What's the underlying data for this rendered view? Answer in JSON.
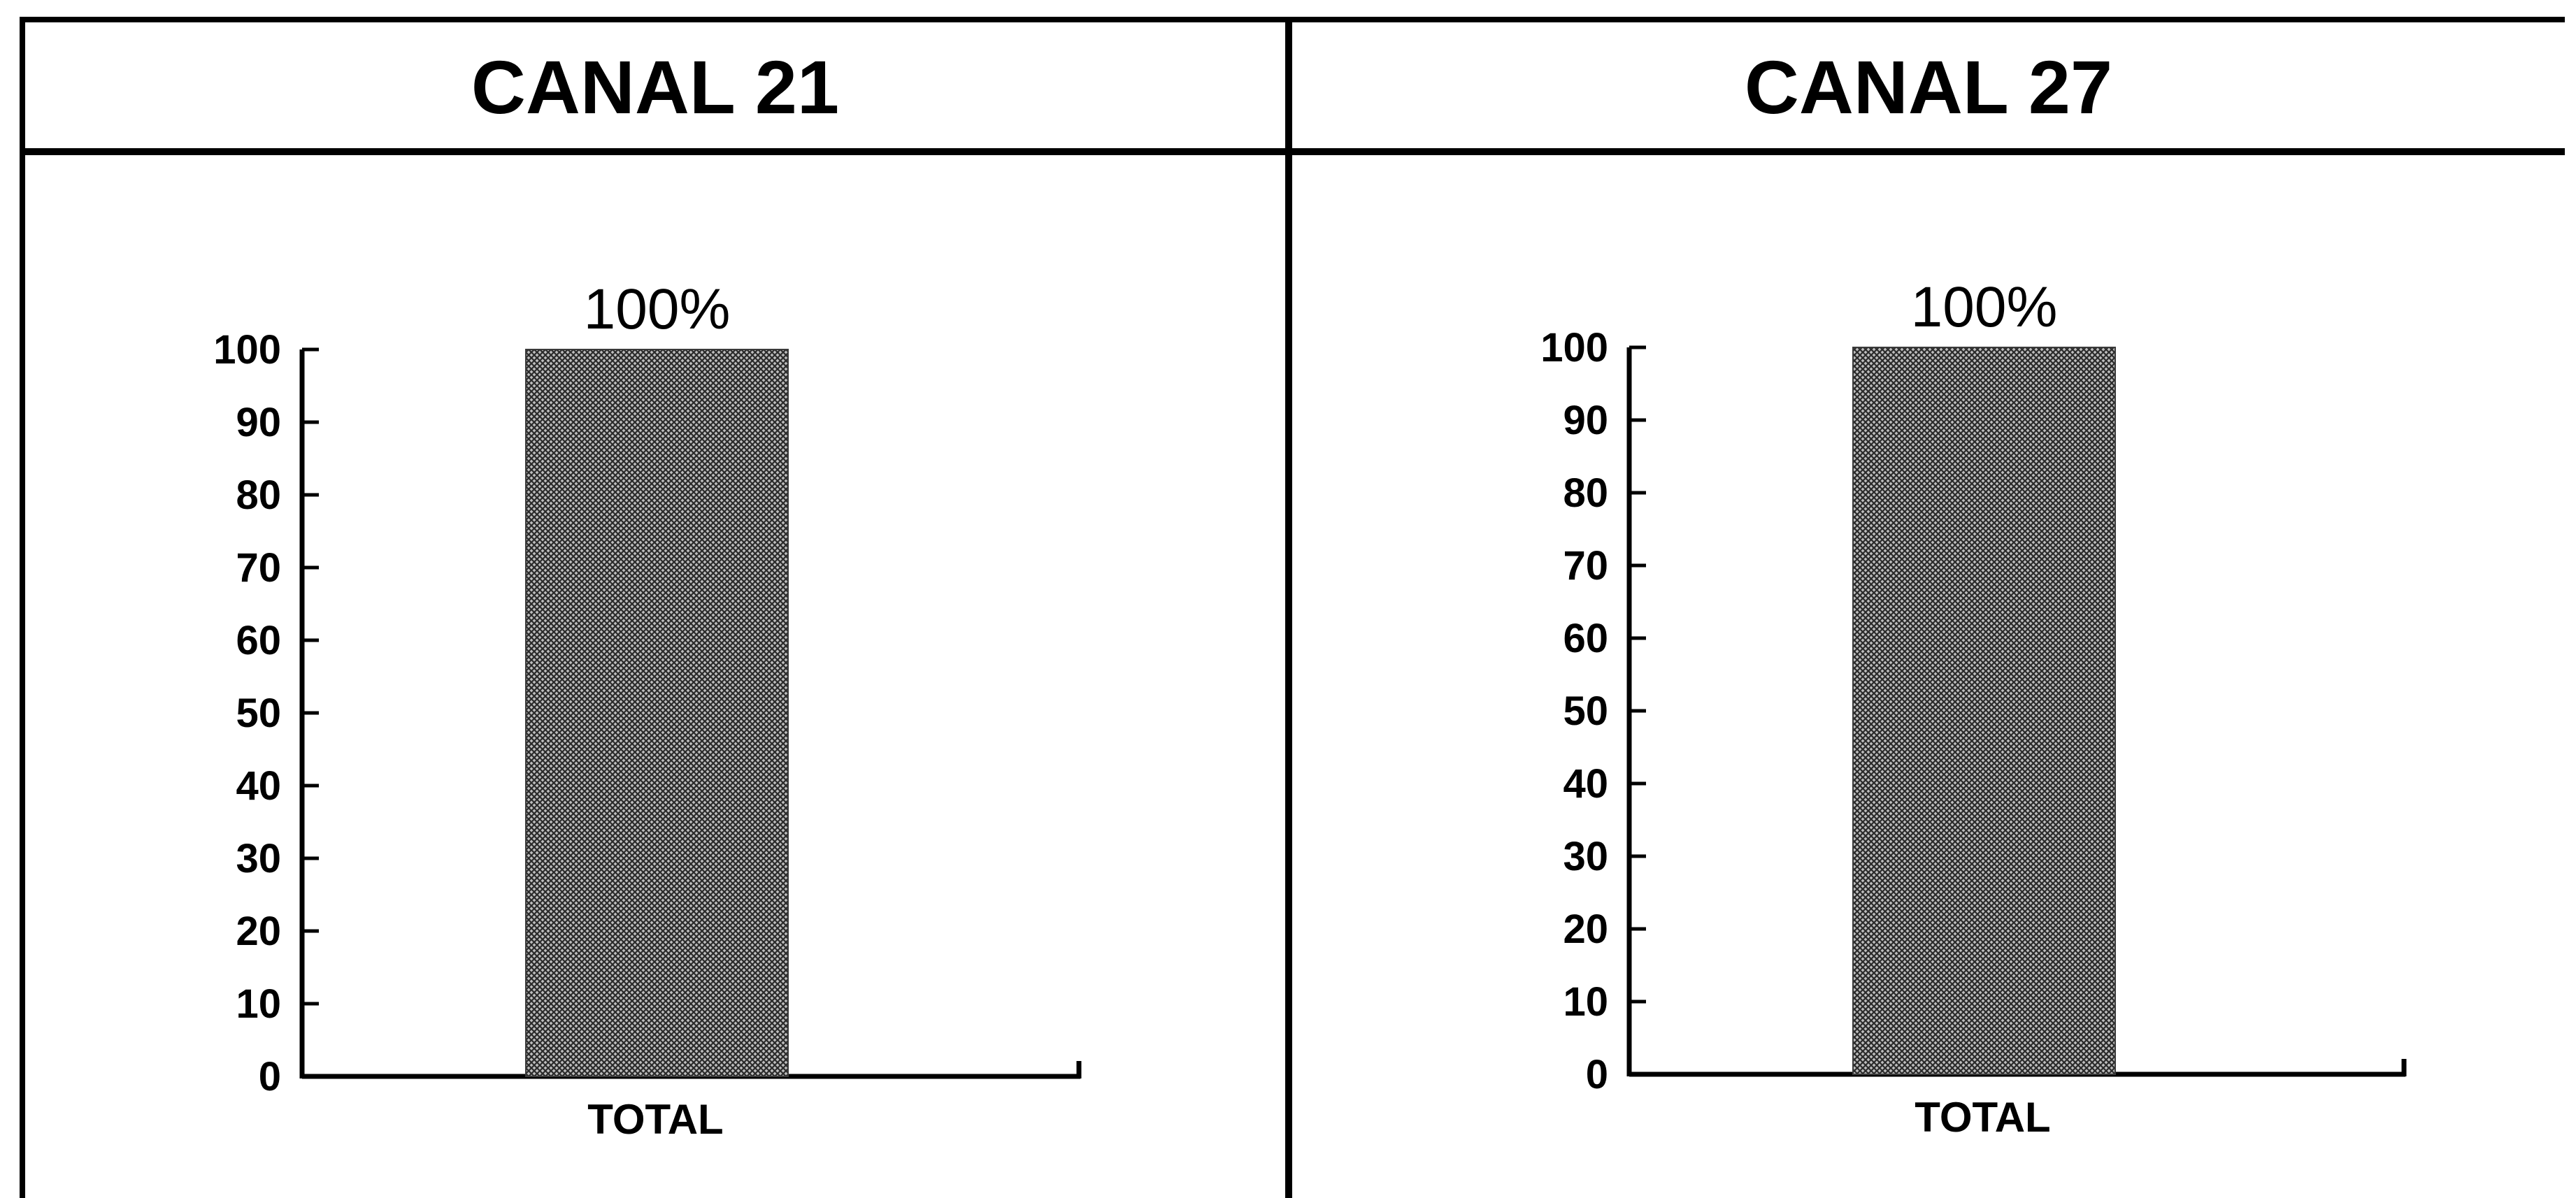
{
  "chart_data": [
    {
      "type": "bar",
      "title": "CANAL 21",
      "categories": [
        "TOTAL"
      ],
      "values": [
        100
      ],
      "data_labels": [
        "100%"
      ],
      "ylim": [
        0,
        100
      ],
      "yticks": [
        "0",
        "10",
        "20",
        "30",
        "40",
        "50",
        "60",
        "70",
        "80",
        "90",
        "100"
      ],
      "xlabel": "",
      "ylabel": "",
      "grid": false,
      "bar_pattern": "crosshatch",
      "bar_color": "#7a7a7a"
    },
    {
      "type": "bar",
      "title": "CANAL 27",
      "categories": [
        "TOTAL"
      ],
      "values": [
        100
      ],
      "data_labels": [
        "100%"
      ],
      "ylim": [
        0,
        100
      ],
      "yticks": [
        "0",
        "10",
        "20",
        "30",
        "40",
        "50",
        "60",
        "70",
        "80",
        "90",
        "100"
      ],
      "xlabel": "",
      "ylabel": "",
      "grid": false,
      "bar_pattern": "crosshatch",
      "bar_color": "#7a7a7a"
    }
  ]
}
